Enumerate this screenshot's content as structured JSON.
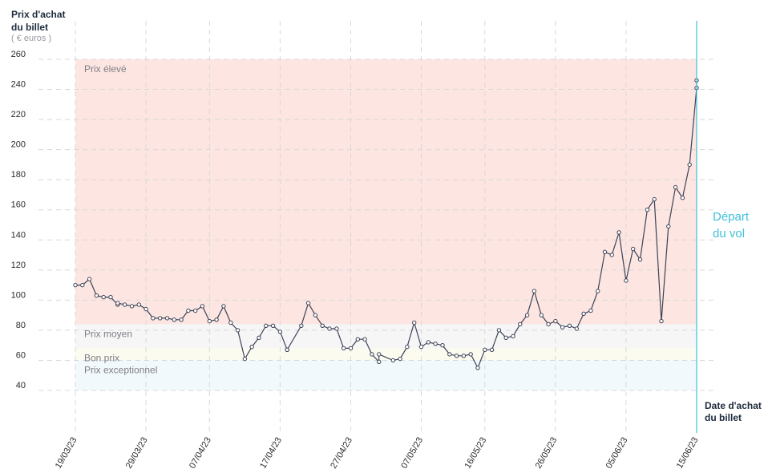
{
  "y_axis": {
    "title_line1": "Prix d'achat",
    "title_line2": "du billet",
    "unit": "( € euros )"
  },
  "x_axis": {
    "title_line1": "Date d'achat",
    "title_line2": "du billet"
  },
  "departure": {
    "line1": "Départ",
    "line2": "du vol"
  },
  "colors": {
    "line": "#3c4357",
    "band_high": "#fde5e1",
    "band_mid": "#f6f6f6",
    "band_good": "#fbfbf0",
    "band_exceptional": "#f2f9fc",
    "departure": "#3fc1d9",
    "grid": "#d8d8d8"
  },
  "chart_data": {
    "type": "line",
    "title": "",
    "xlabel": "Date d'achat du billet",
    "ylabel": "Prix d'achat du billet",
    "ylim": [
      40,
      260
    ],
    "yticks": [
      40,
      60,
      80,
      100,
      120,
      140,
      160,
      180,
      200,
      220,
      240,
      260
    ],
    "xticks": [
      "19/03/23",
      "29/03/23",
      "07/04/23",
      "17/04/23",
      "27/04/23",
      "07/05/23",
      "16/05/23",
      "26/05/23",
      "05/06/23",
      "15/06/23"
    ],
    "grid": true,
    "bands": [
      {
        "label": "Prix élevé",
        "from": 84,
        "to": 260
      },
      {
        "label": "Prix moyen",
        "from": 68,
        "to": 84
      },
      {
        "label": "Bon prix",
        "from": 60,
        "to": 68
      },
      {
        "label": "Prix exceptionnel",
        "from": 40,
        "to": 60
      }
    ],
    "x_start": "19/03/23",
    "x_end": "15/06/23",
    "series": [
      {
        "points": [
          [
            "19/03/23",
            110
          ],
          [
            "20/03/23",
            110
          ],
          [
            "21/03/23",
            114
          ],
          [
            "22/03/23",
            103
          ],
          [
            "23/03/23",
            102
          ],
          [
            "24/03/23",
            102
          ],
          [
            "25/03/23",
            97
          ],
          [
            "25/03/23",
            98
          ],
          [
            "26/03/23",
            97
          ],
          [
            "27/03/23",
            96
          ],
          [
            "28/03/23",
            97
          ],
          [
            "29/03/23",
            94
          ],
          [
            "30/03/23",
            88
          ],
          [
            "31/03/23",
            88
          ],
          [
            "01/04/23",
            88
          ],
          [
            "02/04/23",
            87
          ],
          [
            "03/04/23",
            87
          ],
          [
            "04/04/23",
            93
          ],
          [
            "05/04/23",
            93
          ],
          [
            "06/04/23",
            96
          ],
          [
            "07/04/23",
            86
          ],
          [
            "08/04/23",
            87
          ],
          [
            "09/04/23",
            96
          ],
          [
            "10/04/23",
            85
          ],
          [
            "11/04/23",
            80
          ],
          [
            "12/04/23",
            61
          ],
          [
            "13/04/23",
            69
          ],
          [
            "14/04/23",
            75
          ],
          [
            "15/04/23",
            83
          ],
          [
            "16/04/23",
            83
          ],
          [
            "17/04/23",
            79
          ],
          [
            "18/04/23",
            67
          ],
          [
            "18/04/23",
            67
          ],
          [
            "20/04/23",
            83
          ],
          [
            "21/04/23",
            98
          ],
          [
            "22/04/23",
            90
          ],
          [
            "23/04/23",
            83
          ],
          [
            "24/04/23",
            81
          ],
          [
            "25/04/23",
            81
          ],
          [
            "26/04/23",
            68
          ],
          [
            "27/04/23",
            68
          ],
          [
            "28/04/23",
            74
          ],
          [
            "29/04/23",
            74
          ],
          [
            "30/04/23",
            64
          ],
          [
            "01/05/23",
            59
          ],
          [
            "01/05/23",
            64
          ],
          [
            "03/05/23",
            60
          ],
          [
            "04/05/23",
            61
          ],
          [
            "05/05/23",
            69
          ],
          [
            "06/05/23",
            85
          ],
          [
            "07/05/23",
            69
          ],
          [
            "08/05/23",
            72
          ],
          [
            "09/05/23",
            71
          ],
          [
            "10/05/23",
            70
          ],
          [
            "11/05/23",
            64
          ],
          [
            "12/05/23",
            63
          ],
          [
            "13/05/23",
            63
          ],
          [
            "14/05/23",
            64
          ],
          [
            "15/05/23",
            55
          ],
          [
            "16/05/23",
            67
          ],
          [
            "17/05/23",
            67
          ],
          [
            "18/05/23",
            80
          ],
          [
            "19/05/23",
            75
          ],
          [
            "20/05/23",
            76
          ],
          [
            "21/05/23",
            84
          ],
          [
            "22/05/23",
            90
          ],
          [
            "23/05/23",
            106
          ],
          [
            "24/05/23",
            90
          ],
          [
            "25/05/23",
            84
          ],
          [
            "26/05/23",
            86
          ],
          [
            "27/05/23",
            82
          ],
          [
            "28/05/23",
            83
          ],
          [
            "29/05/23",
            81
          ],
          [
            "30/05/23",
            91
          ],
          [
            "31/05/23",
            93
          ],
          [
            "01/06/23",
            106
          ],
          [
            "02/06/23",
            132
          ],
          [
            "03/06/23",
            130
          ],
          [
            "04/06/23",
            145
          ],
          [
            "05/06/23",
            113
          ],
          [
            "06/06/23",
            134
          ],
          [
            "07/06/23",
            127
          ],
          [
            "08/06/23",
            160
          ],
          [
            "09/06/23",
            167
          ],
          [
            "10/06/23",
            86
          ],
          [
            "11/06/23",
            149
          ],
          [
            "12/06/23",
            175
          ],
          [
            "13/06/23",
            168
          ],
          [
            "14/06/23",
            190
          ],
          [
            "15/06/23",
            241
          ],
          [
            "15/06/23",
            246
          ]
        ]
      }
    ]
  }
}
